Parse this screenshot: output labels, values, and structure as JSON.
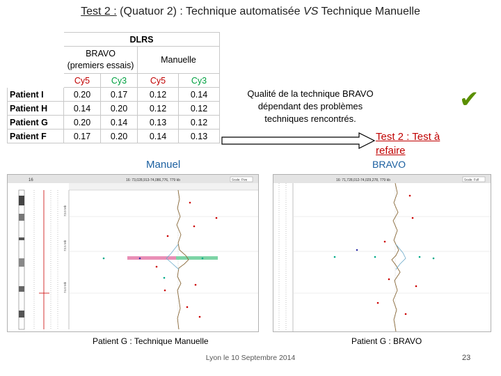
{
  "title": {
    "prefix": "Test 2 :",
    "part1": " (Quatuor 2)  : Technique automatisée ",
    "vs": "VS",
    "part2": " Technique Manuelle"
  },
  "table": {
    "header": "DLRS",
    "group_bravo": "BRAVO",
    "group_bravo_sub": "(premiers essais)",
    "group_manuelle": "Manuelle",
    "cols": [
      "Cy5",
      "Cy3",
      "Cy5",
      "Cy3"
    ],
    "rows": [
      {
        "label": "Patient I",
        "values": [
          "0.20",
          "0.17",
          "0.12",
          "0.14"
        ]
      },
      {
        "label": "Patient H",
        "values": [
          "0.14",
          "0.20",
          "0.12",
          "0.12"
        ]
      },
      {
        "label": "Patient G",
        "values": [
          "0.20",
          "0.14",
          "0.13",
          "0.12"
        ]
      },
      {
        "label": "Patient F",
        "values": [
          "0.17",
          "0.20",
          "0.14",
          "0.13"
        ]
      }
    ]
  },
  "quality_text": [
    "Qualité de la technique BRAVO",
    "dépendant des problèmes",
    "techniques rencontrés."
  ],
  "retest": [
    "Test 2 : Test à",
    "refaire"
  ],
  "label_manuel": "Manuel",
  "label_bravo": "BRAVO",
  "panel_manuel": {
    "chrom": "16",
    "readout": "16: 73,028,913-74,086,776, 779 kb",
    "scale": "Scale: Five",
    "y_labels": [
      "73.0 Mb",
      "73.5 Mb",
      "74.0 Mb"
    ]
  },
  "panel_bravo": {
    "readout": "16: 71,728,012-74,029,278, 779 kb",
    "scale": "Scale: Full"
  },
  "caption_manuel": "Patient G : Technique Manuelle",
  "caption_bravo": "Patient G : BRAVO",
  "footer": "Lyon le 10 Septembre 2014",
  "page_number": "23",
  "colors": {
    "red": "#c00000",
    "green": "#00a040",
    "blue": "#1a5fa0",
    "check": "#5a8f00"
  }
}
